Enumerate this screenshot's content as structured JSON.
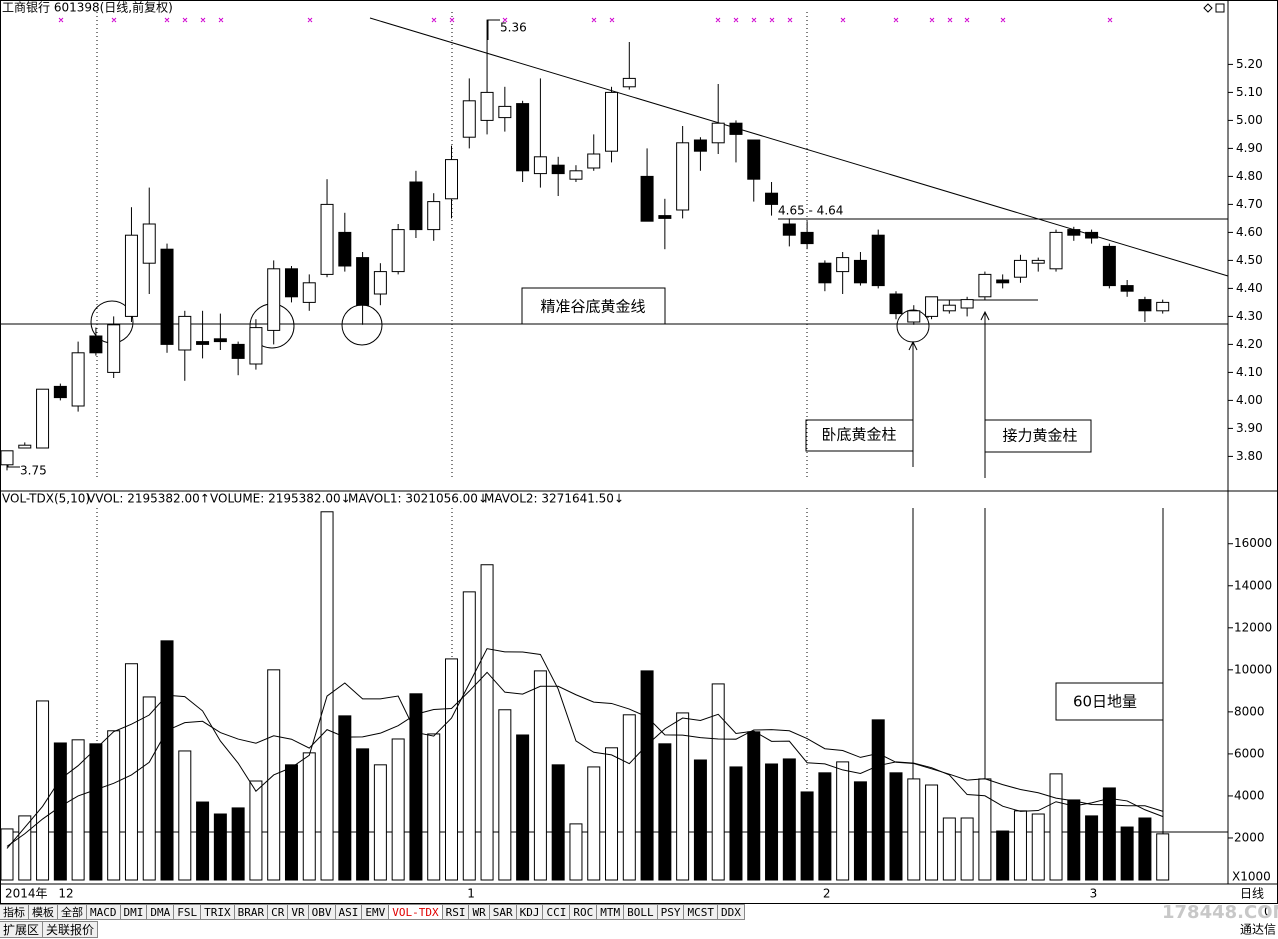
{
  "header": {
    "title": "工商银行 601398(日线,前复权)"
  },
  "chart_data": [
    {
      "type": "candlestick",
      "categories": [
        "2014年",
        null,
        null,
        "12",
        null,
        null,
        null,
        null,
        null,
        null,
        null,
        null,
        null,
        null,
        null,
        null,
        null,
        null,
        null,
        null,
        null,
        null,
        null,
        null,
        null,
        null,
        "1",
        null,
        null,
        null,
        null,
        null,
        null,
        null,
        null,
        null,
        null,
        null,
        null,
        null,
        null,
        null,
        null,
        null,
        null,
        null,
        "2",
        null,
        null,
        null,
        null,
        null,
        null,
        null,
        null,
        null,
        null,
        null,
        null,
        null,
        null,
        "3",
        null,
        null,
        null,
        null
      ],
      "open": [
        3.77,
        3.83,
        3.83,
        4.05,
        3.98,
        4.23,
        4.1,
        4.3,
        4.49,
        4.54,
        4.18,
        4.21,
        4.22,
        4.2,
        4.13,
        4.25,
        4.47,
        4.35,
        4.45,
        4.6,
        4.51,
        4.38,
        4.46,
        4.78,
        4.61,
        4.72,
        4.94,
        5.0,
        5.01,
        5.06,
        4.81,
        4.84,
        4.79,
        4.83,
        4.89,
        5.12,
        4.8,
        4.66,
        4.68,
        4.93,
        4.92,
        4.99,
        4.93,
        4.74,
        4.63,
        4.6,
        4.49,
        4.46,
        4.5,
        4.59,
        4.38,
        4.28,
        4.3,
        4.32,
        4.33,
        4.37,
        4.43,
        4.44,
        4.49,
        4.47,
        4.61,
        4.6,
        4.55,
        4.41,
        4.36,
        4.32
      ],
      "high": [
        3.82,
        3.85,
        4.04,
        4.06,
        4.21,
        4.26,
        4.3,
        4.69,
        4.76,
        4.56,
        4.32,
        4.32,
        4.31,
        4.21,
        4.29,
        4.5,
        4.48,
        4.45,
        4.79,
        4.67,
        4.53,
        4.49,
        4.63,
        4.82,
        4.74,
        4.91,
        5.15,
        5.36,
        5.12,
        5.07,
        5.15,
        4.87,
        4.84,
        4.95,
        5.12,
        5.28,
        4.9,
        4.72,
        4.98,
        4.94,
        5.13,
        5.0,
        4.93,
        4.78,
        4.65,
        4.64,
        4.5,
        4.53,
        4.53,
        4.61,
        4.39,
        4.34,
        4.37,
        4.36,
        4.37,
        4.46,
        4.45,
        4.52,
        4.51,
        4.61,
        4.62,
        4.61,
        4.56,
        4.43,
        4.37,
        4.36
      ],
      "low": [
        3.75,
        3.83,
        3.83,
        4.0,
        3.96,
        4.16,
        4.08,
        4.28,
        4.38,
        4.17,
        4.07,
        4.15,
        4.18,
        4.09,
        4.11,
        4.2,
        4.35,
        4.32,
        4.44,
        4.46,
        4.27,
        4.34,
        4.45,
        4.58,
        4.57,
        4.65,
        4.9,
        4.95,
        4.96,
        4.78,
        4.76,
        4.73,
        4.78,
        4.82,
        4.85,
        5.11,
        4.64,
        4.54,
        4.65,
        4.82,
        4.88,
        4.85,
        4.71,
        4.66,
        4.55,
        4.54,
        4.39,
        4.38,
        4.41,
        4.4,
        4.29,
        4.27,
        4.29,
        4.31,
        4.3,
        4.36,
        4.4,
        4.42,
        4.46,
        4.46,
        4.57,
        4.56,
        4.4,
        4.37,
        4.28,
        4.31
      ],
      "close": [
        3.82,
        3.84,
        4.04,
        4.01,
        4.17,
        4.17,
        4.27,
        4.59,
        4.63,
        4.2,
        4.3,
        4.2,
        4.21,
        4.15,
        4.26,
        4.47,
        4.37,
        4.42,
        4.7,
        4.48,
        4.34,
        4.46,
        4.61,
        4.61,
        4.71,
        4.86,
        5.07,
        5.1,
        5.05,
        4.82,
        4.87,
        4.81,
        4.82,
        4.88,
        5.1,
        5.15,
        4.64,
        4.65,
        4.92,
        4.89,
        4.99,
        4.95,
        4.79,
        4.7,
        4.59,
        4.56,
        4.42,
        4.51,
        4.42,
        4.41,
        4.31,
        4.32,
        4.37,
        4.34,
        4.36,
        4.45,
        4.42,
        4.5,
        4.5,
        4.6,
        4.59,
        4.58,
        4.41,
        4.39,
        4.32,
        4.35
      ],
      "up_color": "#ffffff",
      "down_color": "#000000",
      "ylim": [
        3.68,
        5.43
      ],
      "yticks": [
        {
          "value": 3.8,
          "label": "3.80"
        },
        {
          "value": 3.9,
          "label": "3.90"
        },
        {
          "value": 4.0,
          "label": "4.00"
        },
        {
          "value": 4.1,
          "label": "4.10"
        },
        {
          "value": 4.2,
          "label": "4.20"
        },
        {
          "value": 4.3,
          "label": "4.30"
        },
        {
          "value": 4.4,
          "label": "4.40"
        },
        {
          "value": 4.5,
          "label": "4.50"
        },
        {
          "value": 4.6,
          "label": "4.60"
        },
        {
          "value": 4.7,
          "label": "4.70"
        },
        {
          "value": 4.8,
          "label": "4.80"
        },
        {
          "value": 4.9,
          "label": "4.90"
        },
        {
          "value": 5.0,
          "label": "5.00"
        },
        {
          "value": 5.1,
          "label": "5.10"
        },
        {
          "value": 5.2,
          "label": "5.20"
        }
      ],
      "annotations": {
        "high_label": "5.36",
        "low_label": "3.75",
        "level_label": "4.65 - 4.64",
        "bottom_line": "精准谷底黄金线",
        "pillar1": "卧底黄金柱",
        "pillar2": "接力黄金柱"
      }
    },
    {
      "type": "bar",
      "title": "VOL-TDX(5,10)",
      "readouts": [
        "VVOL: 2195382.00↑",
        "VOLUME: 2195382.00↓",
        "MAVOL1: 3021056.00↓",
        "MAVOL2: 3271641.50↓"
      ],
      "values": [
        2430,
        3050,
        8520,
        6520,
        6670,
        6480,
        7100,
        10290,
        8710,
        11380,
        6140,
        3710,
        3140,
        3430,
        4710,
        10000,
        5480,
        6050,
        17520,
        7810,
        6240,
        5480,
        6710,
        8860,
        6950,
        10520,
        13710,
        15000,
        8100,
        6900,
        9950,
        5480,
        2670,
        5380,
        6290,
        7860,
        9950,
        6480,
        7950,
        5710,
        9330,
        5380,
        7050,
        5520,
        5760,
        4190,
        5100,
        5620,
        4670,
        7620,
        5100,
        4810,
        4520,
        2950,
        2950,
        4810,
        2330,
        3290,
        3140,
        5050,
        3810,
        3050,
        4380,
        2520,
        2950,
        2195.38
      ],
      "series": [
        {
          "color": "#000000",
          "values": [
            1500,
            2500,
            3500,
            4800,
            5438,
            6248,
            7058,
            7412,
            7850,
            8792,
            8724,
            8046,
            6616,
            5560,
            4226,
            4998,
            5352,
            5934,
            8752,
            9372,
            8620,
            8620,
            8752,
            7020,
            6848,
            7704,
            9350,
            11008,
            10856,
            10846,
            10732,
            9086,
            6620,
            6076,
            5954,
            5536,
            6430,
            7192,
            7706,
            7590,
            7884,
            6970,
            7084,
            6598,
            6608,
            5580,
            5524,
            5238,
            5068,
            5440,
            5622,
            5564,
            5344,
            5000,
            4066,
            4008,
            3512,
            3266,
            3304,
            3724,
            3524,
            3668,
            3886,
            3762,
            3342,
            3021.06
          ]
        },
        {
          "color": "#000000",
          "values": [
            1600,
            2200,
            2900,
            3500,
            4000,
            4300,
            4600,
            5000,
            5600,
            7115,
            7486,
            7552,
            7014,
            6705,
            6509,
            6861,
            6699,
            6275,
            7156,
            6799,
            6809,
            6986,
            7343,
            7886,
            8110,
            8162,
            8985,
            9880,
            8938,
            8847,
            9218,
            9218,
            8814,
            8466,
            8400,
            8134,
            7758,
            6906,
            6891,
            6772,
            6710,
            6700,
            7138,
            7152,
            7099,
            6732,
            6247,
            6161,
            5833,
            6024,
            5601,
            5544,
            5291,
            5034,
            4753,
            4815,
            4538,
            4305,
            4152,
            3895,
            3766,
            3590,
            3576,
            3533,
            3533,
            3271.64
          ]
        }
      ],
      "ylim": [
        0,
        17700
      ],
      "yticks": [
        2000,
        4000,
        6000,
        8000,
        10000,
        12000,
        14000,
        16000
      ],
      "unit_label": "X1000",
      "annotation": "60日地量"
    }
  ],
  "axis_right_label": "日线",
  "tabs": [
    "指标",
    "模板",
    "全部",
    "MACD",
    "DMI",
    "DMA",
    "FSL",
    "TRIX",
    "BRAR",
    "CR",
    "VR",
    "OBV",
    "ASI",
    "EMV",
    "VOL-TDX",
    "RSI",
    "WR",
    "SAR",
    "KDJ",
    "CCI",
    "ROC",
    "MTM",
    "BOLL",
    "PSY",
    "MCST",
    "DDX"
  ],
  "active_tab": 14,
  "row2": [
    "扩展区",
    "关联报价"
  ],
  "footer": {
    "zero": "0",
    "brand": "通达信",
    "watermark": "178448.COM"
  }
}
